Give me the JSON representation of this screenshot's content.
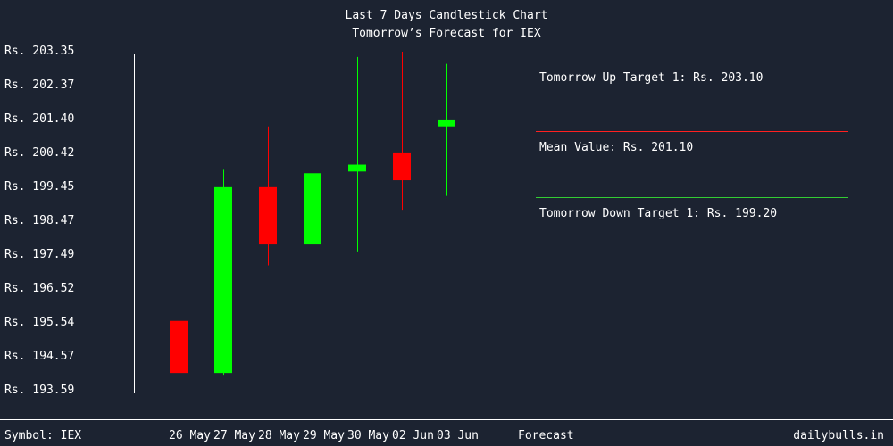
{
  "chart_data": {
    "type": "candlestick",
    "title": "Last 7 Days Candlestick Chart",
    "subtitle": "Tomorrow’s Forecast for IEX",
    "y_ticks": [
      "Rs. 203.35",
      "Rs. 202.37",
      "Rs. 201.40",
      "Rs. 200.42",
      "Rs. 199.45",
      "Rs. 198.47",
      "Rs. 197.49",
      "Rs. 196.52",
      "Rs. 195.54",
      "Rs. 194.57",
      "Rs. 193.59"
    ],
    "ylim": [
      193.59,
      203.35
    ],
    "categories": [
      "26 May",
      "27 May",
      "28 May",
      "29 May",
      "30 May",
      "02 Jun",
      "03 Jun"
    ],
    "candles": [
      {
        "date": "26 May",
        "open": 195.6,
        "high": 197.6,
        "low": 193.6,
        "close": 194.1
      },
      {
        "date": "27 May",
        "open": 194.1,
        "high": 199.95,
        "low": 194.05,
        "close": 199.45
      },
      {
        "date": "28 May",
        "open": 199.45,
        "high": 201.2,
        "low": 197.2,
        "close": 197.8
      },
      {
        "date": "29 May",
        "open": 197.8,
        "high": 200.4,
        "low": 197.3,
        "close": 199.85
      },
      {
        "date": "30 May",
        "open": 199.9,
        "high": 203.2,
        "low": 197.6,
        "close": 200.1
      },
      {
        "date": "02 Jun",
        "open": 200.45,
        "high": 203.35,
        "low": 198.8,
        "close": 199.65
      },
      {
        "date": "03 Jun",
        "open": 201.2,
        "high": 203.0,
        "low": 199.2,
        "close": 201.4
      }
    ],
    "up_color": "#00ff00",
    "down_color": "#ff0000",
    "forecast": {
      "label": "Forecast",
      "targets": [
        {
          "key": "up",
          "label": "Tomorrow Up Target 1: Rs. 203.10",
          "value": 203.1,
          "color": "#ff8c1a"
        },
        {
          "key": "mean",
          "label": "Mean Value: Rs. 201.10",
          "value": 201.1,
          "color": "#ff2020"
        },
        {
          "key": "down",
          "label": "Tomorrow Down Target 1: Rs. 199.20",
          "value": 199.2,
          "color": "#33cc33"
        }
      ]
    }
  },
  "footer": {
    "symbol": "Symbol: IEX",
    "site": "dailybulls.in"
  }
}
